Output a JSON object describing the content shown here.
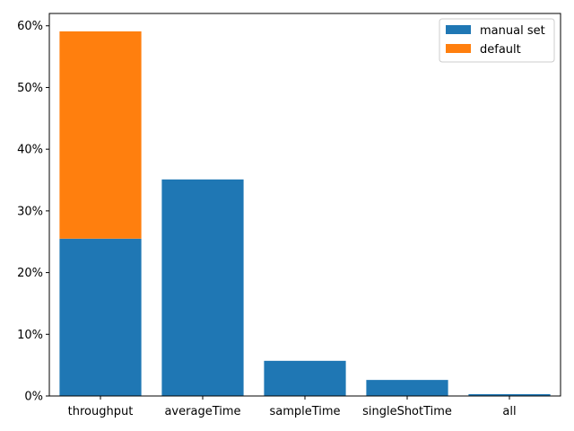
{
  "chart_data": {
    "type": "bar",
    "stacked": true,
    "categories": [
      "throughput",
      "averageTime",
      "sampleTime",
      "singleShotTime",
      "all"
    ],
    "series": [
      {
        "name": "manual set",
        "values": [
          25.5,
          35.1,
          5.7,
          2.6,
          0.3
        ],
        "color": "#1f77b4"
      },
      {
        "name": "default",
        "values": [
          33.6,
          0,
          0,
          0,
          0
        ],
        "color": "#ff7f0e"
      }
    ],
    "yticks": [
      0,
      10,
      20,
      30,
      40,
      50,
      60
    ],
    "ytick_format": "percent",
    "ylim": [
      0,
      62
    ],
    "grid": false,
    "legend_position": "top-right"
  }
}
